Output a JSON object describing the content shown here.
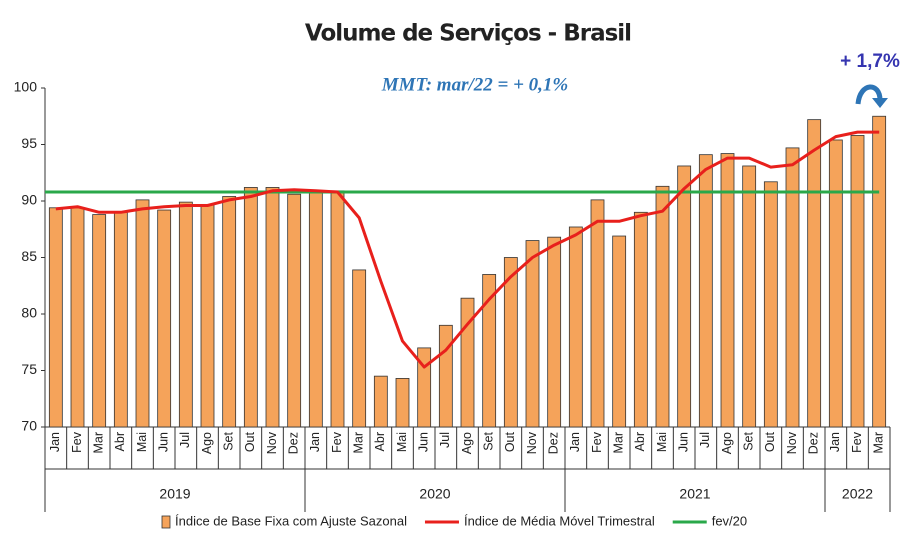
{
  "chart_data": {
    "type": "combo",
    "title": "Volume de Serviços - Brasil",
    "annotation": "MMT: mar/22 =  + 0,1%",
    "callout": "+ 1,7%",
    "categories": [
      "Jan",
      "Fev",
      "Mar",
      "Abr",
      "Mai",
      "Jun",
      "Jul",
      "Ago",
      "Set",
      "Out",
      "Nov",
      "Dez",
      "Jan",
      "Fev",
      "Mar",
      "Abr",
      "Mai",
      "Jun",
      "Jul",
      "Ago",
      "Set",
      "Out",
      "Nov",
      "Dez",
      "Jan",
      "Fev",
      "Mar",
      "Abr",
      "Mai",
      "Jun",
      "Jul",
      "Ago",
      "Set",
      "Out",
      "Nov",
      "Dez",
      "Jan",
      "Fev",
      "Mar"
    ],
    "year_groups": [
      "2019",
      "2020",
      "2021",
      "2022"
    ],
    "series": [
      {
        "name": "Índice de Base Fixa com Ajuste Sazonal",
        "type": "bar",
        "color": "#f5a35a",
        "values": [
          89.4,
          89.4,
          88.8,
          89.0,
          90.1,
          89.2,
          89.9,
          89.7,
          90.4,
          91.2,
          91.2,
          90.6,
          90.9,
          90.9,
          83.9,
          74.5,
          74.3,
          77.0,
          79.0,
          81.4,
          83.5,
          85.0,
          86.5,
          86.8,
          87.7,
          90.1,
          86.9,
          89.0,
          91.3,
          93.1,
          94.1,
          94.2,
          93.1,
          91.7,
          94.7,
          97.2,
          95.4,
          95.8,
          97.5
        ]
      },
      {
        "name": "Índice de Média Móvel Trimestral",
        "type": "line",
        "color": "#e8201c",
        "values": [
          89.3,
          89.5,
          89.0,
          89.0,
          89.3,
          89.5,
          89.6,
          89.6,
          90.1,
          90.4,
          90.9,
          91.0,
          90.9,
          90.8,
          88.5,
          82.9,
          77.6,
          75.3,
          76.8,
          79.1,
          81.3,
          83.3,
          85.0,
          86.1,
          87.0,
          88.2,
          88.2,
          88.7,
          89.1,
          91.1,
          92.8,
          93.8,
          93.8,
          93.0,
          93.2,
          94.5,
          95.7,
          96.1,
          96.1
        ]
      }
    ],
    "reference": {
      "name": "fev/20",
      "value": 90.8,
      "color": "#2aa84a"
    },
    "ylim": [
      70,
      100
    ],
    "yticks": [
      70,
      75,
      80,
      85,
      90,
      95,
      100
    ]
  }
}
